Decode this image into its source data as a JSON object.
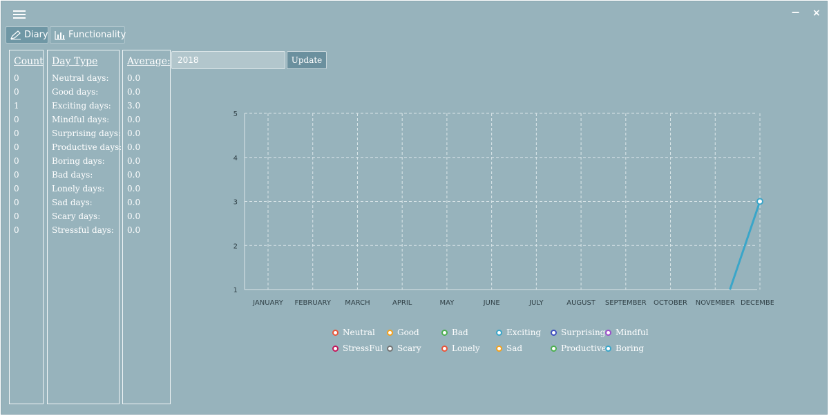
{
  "window": {
    "minimize_label": "−",
    "close_label": "×"
  },
  "tabs": [
    {
      "label": "Diary",
      "icon": "pen-icon",
      "active": true
    },
    {
      "label": "Functionality",
      "icon": "bar-chart-icon",
      "active": false
    }
  ],
  "stats": {
    "count_header": "Count",
    "type_header": "Day Type",
    "avg_header": "Average:",
    "rows": [
      {
        "count": "0",
        "type": "Neutral days:",
        "avg": "0.0"
      },
      {
        "count": "0",
        "type": "Good days:",
        "avg": "0.0"
      },
      {
        "count": "1",
        "type": "Exciting days:",
        "avg": "3.0"
      },
      {
        "count": "0",
        "type": "Mindful days:",
        "avg": "0.0"
      },
      {
        "count": "0",
        "type": "Surprising days:",
        "avg": "0.0"
      },
      {
        "count": "0",
        "type": "Productive days:",
        "avg": "0.0"
      },
      {
        "count": "0",
        "type": "Boring days:",
        "avg": "0.0"
      },
      {
        "count": "0",
        "type": "Bad days:",
        "avg": "0.0"
      },
      {
        "count": "0",
        "type": "Lonely days:",
        "avg": "0.0"
      },
      {
        "count": "0",
        "type": "Sad days:",
        "avg": "0.0"
      },
      {
        "count": "0",
        "type": "Scary days:",
        "avg": "0.0"
      },
      {
        "count": "0",
        "type": "Stressful days:",
        "avg": "0.0"
      }
    ]
  },
  "controls": {
    "year_value": "2018",
    "update_label": "Update"
  },
  "chart_data": {
    "type": "line",
    "categories": [
      "JANUARY",
      "FEBRUARY",
      "MARCH",
      "APRIL",
      "MAY",
      "JUNE",
      "JULY",
      "AUGUST",
      "SEPTEMBER",
      "OCTOBER",
      "NOVEMBER",
      "DECEMBER"
    ],
    "ylim": [
      1,
      5
    ],
    "yticks": [
      "1",
      "2",
      "3",
      "4",
      "5"
    ],
    "grid": true,
    "legend_position": "bottom",
    "series": [
      {
        "name": "Exciting",
        "color": "#3aa6c9",
        "points": [
          {
            "x": "NOVEMBER",
            "y": 1
          },
          {
            "x": "DECEMBER",
            "y": 3
          }
        ]
      }
    ],
    "legend": [
      {
        "name": "Neutral",
        "color": "#e8553a"
      },
      {
        "name": "Good",
        "color": "#f4a11c"
      },
      {
        "name": "Bad",
        "color": "#4caf50"
      },
      {
        "name": "Exciting",
        "color": "#3aa6c9"
      },
      {
        "name": "Surprising",
        "color": "#3f4fbf"
      },
      {
        "name": "Mindful",
        "color": "#9c4fc9"
      },
      {
        "name": "StressFul",
        "color": "#c2185b"
      },
      {
        "name": "Scary",
        "color": "#757575"
      },
      {
        "name": "Lonely",
        "color": "#e8553a"
      },
      {
        "name": "Sad",
        "color": "#f4a11c"
      },
      {
        "name": "Productive",
        "color": "#4caf50"
      },
      {
        "name": "Boring",
        "color": "#3aa6c9"
      }
    ]
  }
}
